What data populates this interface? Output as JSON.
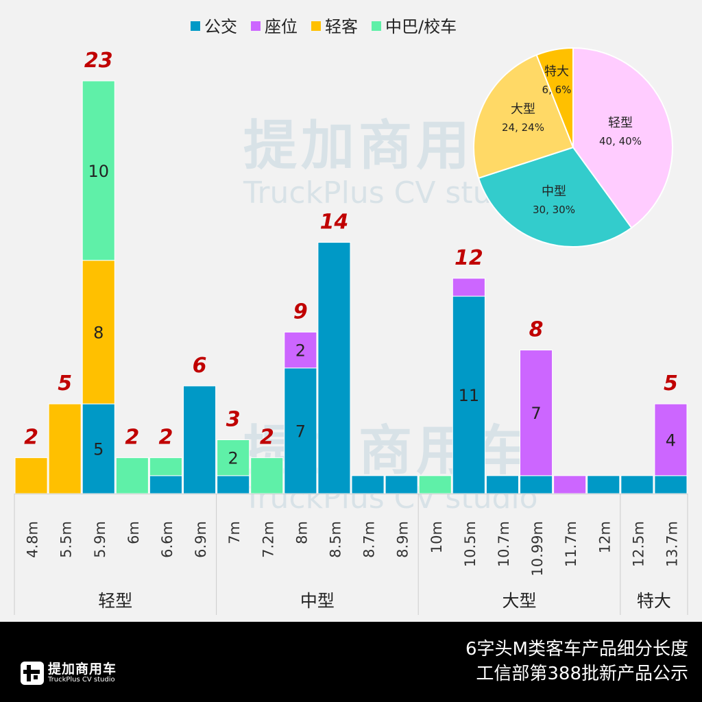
{
  "chart_data": {
    "type": "bar",
    "stacked": true,
    "legend": [
      "公交",
      "座位",
      "轻客",
      "中巴/校车"
    ],
    "legend_position": "top",
    "colors": {
      "公交": "#0099c6",
      "座位": "#cc66ff",
      "轻客": "#ffc000",
      "中巴/校车": "#5ff0a8",
      "total_label": "#c00000"
    },
    "categories": [
      "4.8m",
      "5.5m",
      "5.9m",
      "6m",
      "6.6m",
      "6.9m",
      "7m",
      "7.2m",
      "8m",
      "8.5m",
      "8.7m",
      "8.9m",
      "10m",
      "10.5m",
      "10.7m",
      "10.99m",
      "11.7m",
      "12m",
      "12.5m",
      "13.7m"
    ],
    "groups": [
      {
        "label": "轻型",
        "count": 6
      },
      {
        "label": "中型",
        "count": 6
      },
      {
        "label": "大型",
        "count": 6
      },
      {
        "label": "特大",
        "count": 2
      }
    ],
    "stacks": [
      [
        {
          "s": "轻客",
          "v": 2
        }
      ],
      [
        {
          "s": "轻客",
          "v": 5
        }
      ],
      [
        {
          "s": "公交",
          "v": 5,
          "show": true
        },
        {
          "s": "轻客",
          "v": 8,
          "show": true
        },
        {
          "s": "中巴/校车",
          "v": 10,
          "show": true
        }
      ],
      [
        {
          "s": "中巴/校车",
          "v": 2
        }
      ],
      [
        {
          "s": "公交",
          "v": 1
        },
        {
          "s": "中巴/校车",
          "v": 1
        }
      ],
      [
        {
          "s": "公交",
          "v": 6
        }
      ],
      [
        {
          "s": "公交",
          "v": 1
        },
        {
          "s": "中巴/校车",
          "v": 2,
          "show": true
        }
      ],
      [
        {
          "s": "中巴/校车",
          "v": 2
        }
      ],
      [
        {
          "s": "公交",
          "v": 7,
          "show": true
        },
        {
          "s": "座位",
          "v": 2,
          "show": true
        }
      ],
      [
        {
          "s": "公交",
          "v": 14
        }
      ],
      [
        {
          "s": "公交",
          "v": 1
        }
      ],
      [
        {
          "s": "公交",
          "v": 1
        }
      ],
      [
        {
          "s": "中巴/校车",
          "v": 1
        }
      ],
      [
        {
          "s": "公交",
          "v": 11,
          "show": true
        },
        {
          "s": "座位",
          "v": 1
        }
      ],
      [
        {
          "s": "公交",
          "v": 1
        }
      ],
      [
        {
          "s": "公交",
          "v": 1
        },
        {
          "s": "座位",
          "v": 7,
          "show": true
        }
      ],
      [
        {
          "s": "座位",
          "v": 1
        }
      ],
      [
        {
          "s": "公交",
          "v": 1
        }
      ],
      [
        {
          "s": "公交",
          "v": 1
        }
      ],
      [
        {
          "s": "公交",
          "v": 1
        },
        {
          "s": "座位",
          "v": 4,
          "show": true
        }
      ]
    ],
    "totals": [
      2,
      5,
      23,
      2,
      2,
      6,
      3,
      2,
      9,
      14,
      null,
      null,
      null,
      12,
      null,
      8,
      null,
      null,
      null,
      5
    ],
    "ylim": [
      0,
      24
    ],
    "pie": {
      "type": "pie",
      "slices": [
        {
          "label": "轻型",
          "value": 40,
          "text": "40, 40%",
          "color": "#ffccff"
        },
        {
          "label": "中型",
          "value": 30,
          "text": "30, 30%",
          "color": "#33cccc"
        },
        {
          "label": "大型",
          "value": 24,
          "text": "24, 24%",
          "color": "#ffd966"
        },
        {
          "label": "特大",
          "value": 6,
          "text": "6, 6%",
          "color": "#ffc000"
        }
      ]
    }
  },
  "footer": {
    "title_line1": "6字头M类客车产品细分长度",
    "title_line2": "工信部第388批新产品公示",
    "logo_cn": "提加商用车",
    "logo_en": "TruckPlus CV studio"
  },
  "watermark": {
    "cn": "提加商用车",
    "en": "TruckPlus CV studio"
  }
}
